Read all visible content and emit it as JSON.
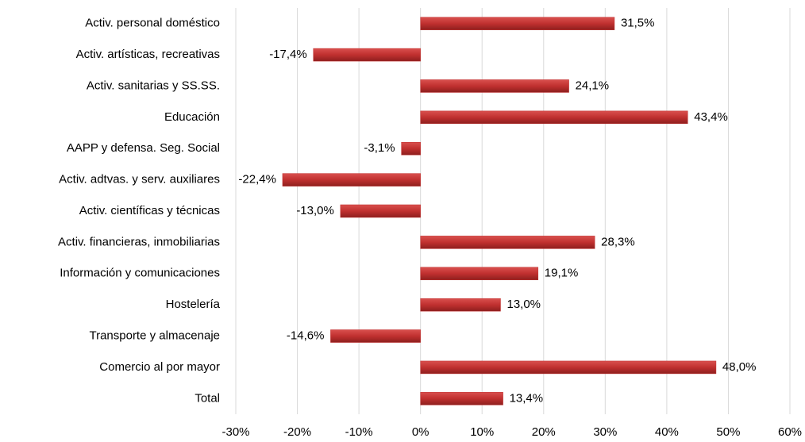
{
  "chart_data": {
    "type": "bar",
    "orientation": "horizontal",
    "categories": [
      "Activ. personal doméstico",
      "Activ. artísticas, recreativas",
      "Activ. sanitarias y SS.SS.",
      "Educación",
      "AAPP y defensa. Seg. Social",
      "Activ. adtvas. y serv. auxiliares",
      "Activ. científicas y técnicas",
      "Activ. financieras, inmobiliarias",
      "Información y comunicaciones",
      "Hostelería",
      "Transporte y almacenaje",
      "Comercio al por mayor",
      "Total"
    ],
    "values": [
      31.5,
      -17.4,
      24.1,
      43.4,
      -3.1,
      -22.4,
      -13.0,
      28.3,
      19.1,
      13.0,
      -14.6,
      48.0,
      13.4
    ],
    "value_labels": [
      "31,5%",
      "-17,4%",
      "24,1%",
      "43,4%",
      "-3,1%",
      "-22,4%",
      "-13,0%",
      "28,3%",
      "19,1%",
      "13,0%",
      "-14,6%",
      "48,0%",
      "13,4%"
    ],
    "color": "#c0302f",
    "xlim": [
      -30,
      60
    ],
    "xticks": [
      {
        "value": -30,
        "label": "-30%"
      },
      {
        "value": -20,
        "label": "-20%"
      },
      {
        "value": -10,
        "label": "-10%"
      },
      {
        "value": 0,
        "label": "0%"
      },
      {
        "value": 10,
        "label": "10%"
      },
      {
        "value": 20,
        "label": "20%"
      },
      {
        "value": 30,
        "label": "30%"
      },
      {
        "value": 40,
        "label": "40%"
      },
      {
        "value": 50,
        "label": "50%"
      },
      {
        "value": 60,
        "label": "60%"
      }
    ],
    "grid": true
  }
}
